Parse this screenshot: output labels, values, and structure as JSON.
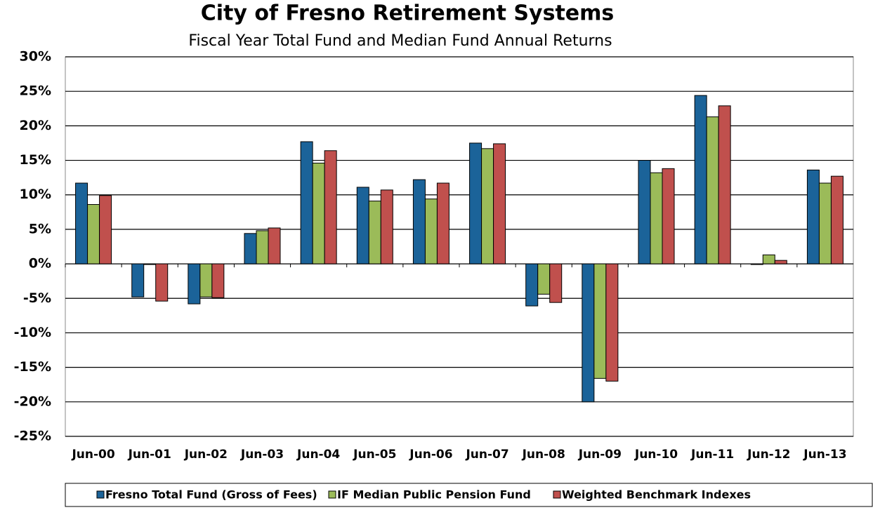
{
  "chart_data": {
    "type": "bar",
    "title": "City of Fresno Retirement Systems",
    "subtitle": "Fiscal Year Total Fund and Median Fund Annual Returns",
    "categories": [
      "Jun-00",
      "Jun-01",
      "Jun-02",
      "Jun-03",
      "Jun-04",
      "Jun-05",
      "Jun-06",
      "Jun-07",
      "Jun-08",
      "Jun-09",
      "Jun-10",
      "Jun-11",
      "Jun-12",
      "Jun-13"
    ],
    "series": [
      {
        "name": "Fresno Total Fund (Gross of Fees)",
        "color": "#1b6399",
        "values": [
          11.7,
          -4.8,
          -5.8,
          4.4,
          17.7,
          11.1,
          12.2,
          17.5,
          -6.1,
          -20.0,
          15.0,
          24.4,
          -0.1,
          13.6
        ]
      },
      {
        "name": "IF Median Public Pension Fund",
        "color": "#9bbb59",
        "values": [
          8.6,
          -0.1,
          -4.8,
          4.8,
          14.6,
          9.1,
          9.4,
          16.7,
          -4.4,
          -16.6,
          13.2,
          21.3,
          1.3,
          11.7
        ]
      },
      {
        "name": "Weighted Benchmark Indexes",
        "color": "#c0504d",
        "values": [
          9.9,
          -5.4,
          -4.9,
          5.2,
          16.4,
          10.7,
          11.7,
          17.4,
          -5.6,
          -17.0,
          13.8,
          22.9,
          0.5,
          12.7
        ]
      }
    ],
    "ylim": [
      -25,
      30
    ],
    "yticks": [
      {
        "value": -25,
        "label": "-25%"
      },
      {
        "value": -20,
        "label": "-20%"
      },
      {
        "value": -15,
        "label": "-15%"
      },
      {
        "value": -10,
        "label": "-10%"
      },
      {
        "value": -5,
        "label": "-5%"
      },
      {
        "value": 0,
        "label": "0%"
      },
      {
        "value": 5,
        "label": "5%"
      },
      {
        "value": 10,
        "label": "10%"
      },
      {
        "value": 15,
        "label": "15%"
      },
      {
        "value": 20,
        "label": "20%"
      },
      {
        "value": 25,
        "label": "25%"
      },
      {
        "value": 30,
        "label": "30%"
      }
    ],
    "grid": true,
    "legend": "bottom"
  }
}
